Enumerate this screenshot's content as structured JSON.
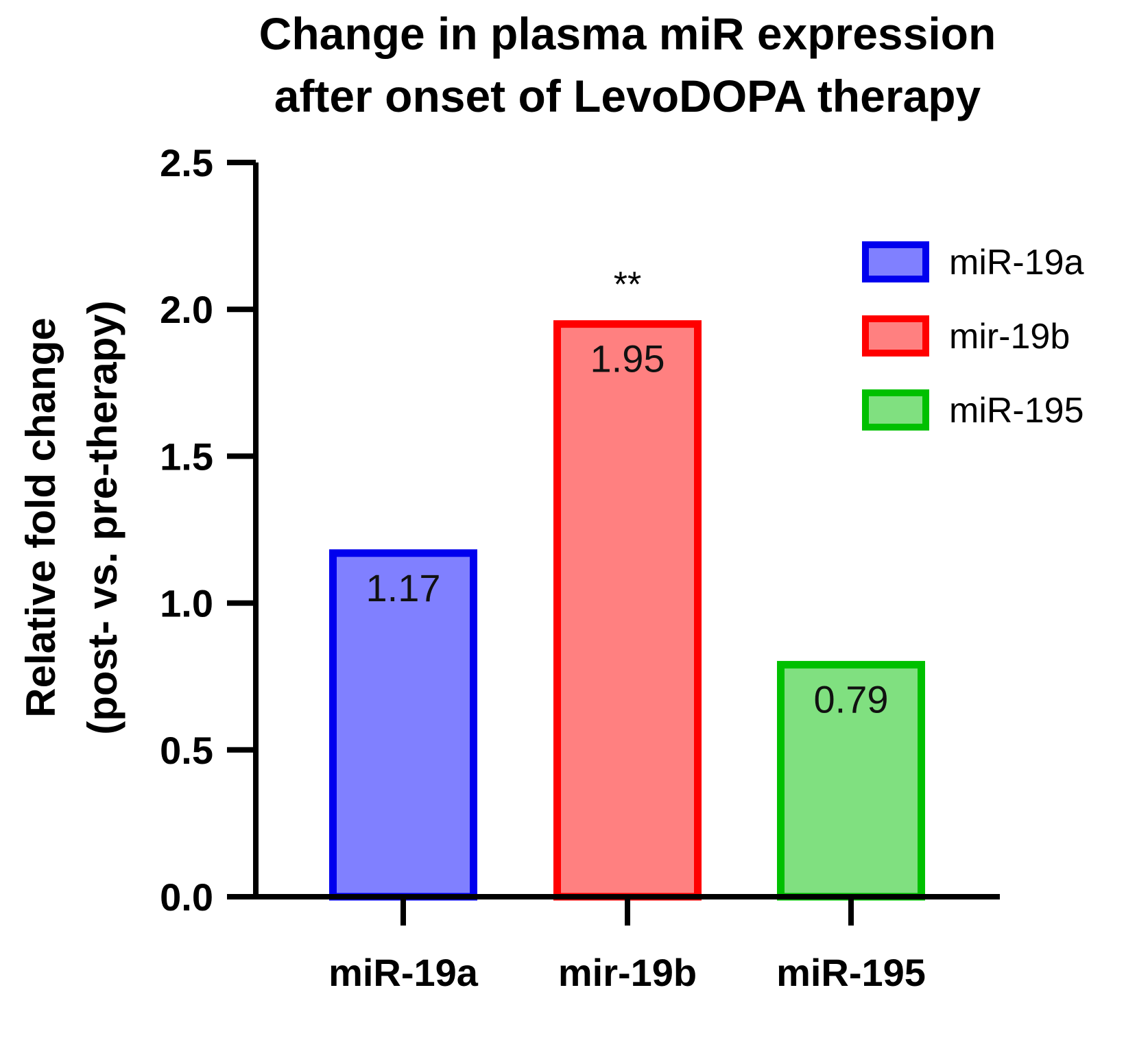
{
  "chart_data": {
    "type": "bar",
    "title_lines": [
      "Change in plasma miR expression",
      "after onset of LevoDOPA therapy"
    ],
    "ylabel_lines": [
      "Relative fold change",
      "(post- vs. pre-therapy)"
    ],
    "xlabel": "",
    "ylim": [
      0,
      2.5
    ],
    "yticks": [
      "0.0",
      "0.5",
      "1.0",
      "1.5",
      "2.0",
      "2.5"
    ],
    "ytick_values": [
      0,
      0.5,
      1.0,
      1.5,
      2.0,
      2.5
    ],
    "categories": [
      "miR-19a",
      "mir-19b",
      "miR-195"
    ],
    "values": [
      1.17,
      1.95,
      0.79
    ],
    "data_labels": [
      "1.17",
      "1.95",
      "0.79"
    ],
    "annotations": [
      {
        "category": "mir-19b",
        "text": "**"
      }
    ],
    "colors": {
      "miR-19a": {
        "fill": "#8080ff",
        "stroke": "#0000ee"
      },
      "mir-19b": {
        "fill": "#ff8080",
        "stroke": "#ff0000"
      },
      "miR-195": {
        "fill": "#80e080",
        "stroke": "#00c000"
      }
    },
    "legend": {
      "position": "top-right",
      "entries": [
        "miR-19a",
        "mir-19b",
        "miR-195"
      ]
    },
    "grid": false
  }
}
